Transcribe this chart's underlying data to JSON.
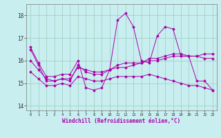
{
  "xlabel": "Windchill (Refroidissement éolien,°C)",
  "ylim": [
    13.8,
    18.5
  ],
  "xlim": [
    -0.5,
    23.5
  ],
  "yticks": [
    14,
    15,
    16,
    17,
    18
  ],
  "xticks": [
    0,
    1,
    2,
    3,
    4,
    5,
    6,
    7,
    8,
    9,
    10,
    11,
    12,
    13,
    14,
    15,
    16,
    17,
    18,
    19,
    20,
    21,
    22,
    23
  ],
  "bg_color": "#c8eef0",
  "line_color": "#aa00aa",
  "grid_color": "#99ccbb",
  "lines": [
    [
      16.6,
      15.9,
      15.3,
      15.3,
      15.4,
      15.4,
      16.0,
      14.8,
      14.7,
      14.8,
      15.6,
      17.8,
      18.1,
      17.5,
      16.0,
      15.9,
      17.1,
      17.5,
      17.4,
      16.2,
      16.2,
      15.1,
      15.1,
      14.7
    ],
    [
      16.5,
      15.8,
      15.1,
      15.1,
      15.2,
      15.1,
      15.8,
      15.5,
      15.4,
      15.4,
      15.6,
      15.8,
      15.9,
      15.9,
      15.9,
      16.1,
      16.1,
      16.2,
      16.3,
      16.3,
      16.2,
      16.2,
      16.3,
      16.3
    ],
    [
      16.0,
      15.6,
      15.2,
      15.1,
      15.2,
      15.2,
      15.7,
      15.6,
      15.5,
      15.5,
      15.6,
      15.7,
      15.7,
      15.8,
      15.9,
      16.0,
      16.0,
      16.1,
      16.2,
      16.2,
      16.2,
      16.2,
      16.1,
      16.1
    ],
    [
      15.5,
      15.2,
      14.9,
      14.9,
      15.0,
      14.9,
      15.3,
      15.2,
      15.1,
      15.1,
      15.2,
      15.3,
      15.3,
      15.3,
      15.3,
      15.4,
      15.3,
      15.2,
      15.1,
      15.0,
      14.9,
      14.9,
      14.8,
      14.7
    ]
  ]
}
